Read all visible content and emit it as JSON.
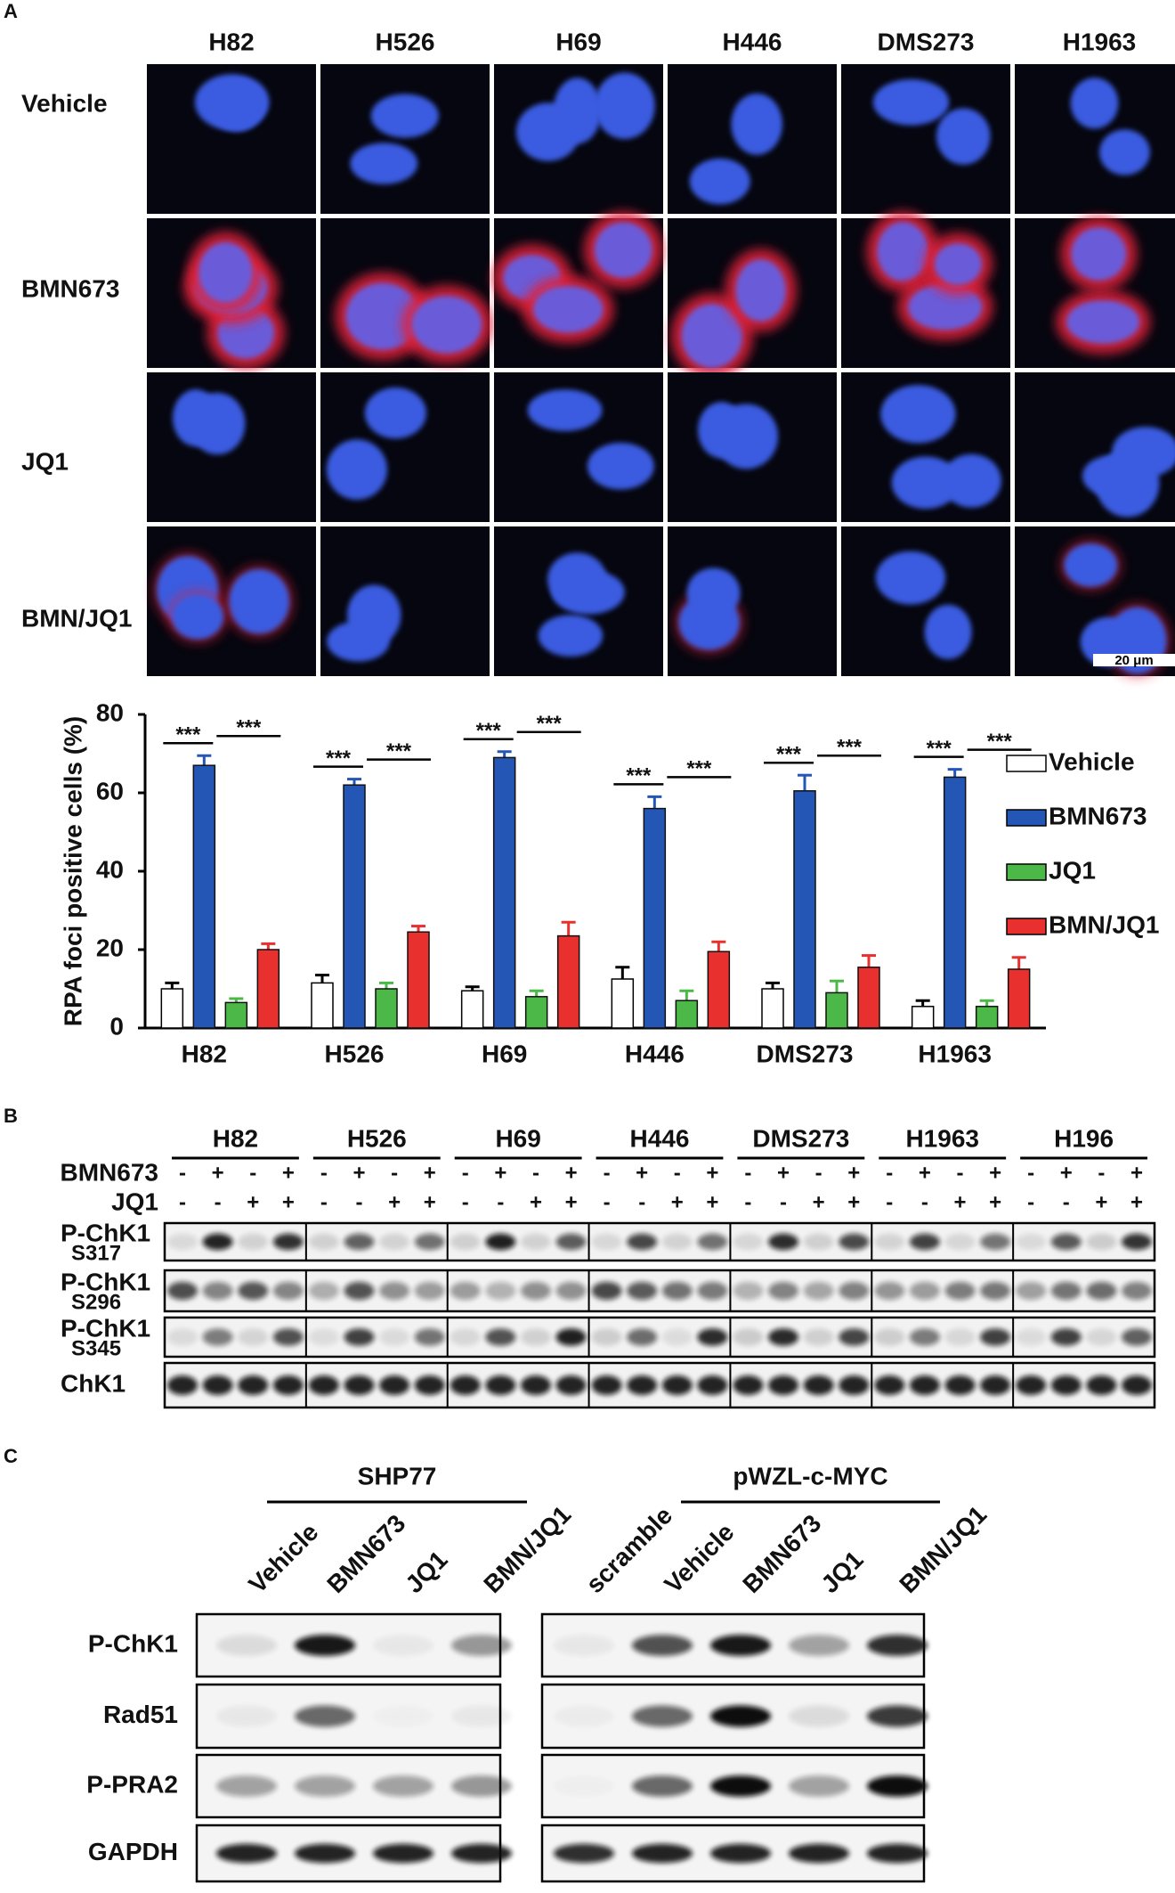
{
  "panel_a": {
    "label": "A",
    "cell_lines": [
      "H82",
      "H526",
      "H69",
      "H446",
      "DMS273",
      "H1963"
    ],
    "treatments": [
      "Vehicle",
      "BMN673",
      "JQ1",
      "BMN/JQ1"
    ],
    "scale_bar": "20 μm"
  },
  "chart_data": {
    "type": "bar",
    "ylabel": "RPA foci positive cells (%)",
    "categories": [
      "H82",
      "H526",
      "H69",
      "H446",
      "DMS273",
      "H1963"
    ],
    "series": [
      {
        "name": "Vehicle",
        "color": "#ffffff",
        "values": [
          10,
          11.5,
          9.5,
          12.5,
          10,
          5.5
        ],
        "errors": [
          1.5,
          2,
          1,
          3,
          1.5,
          1.5
        ]
      },
      {
        "name": "BMN673",
        "color": "#2456b5",
        "values": [
          67,
          62,
          69,
          56,
          60.5,
          64
        ],
        "errors": [
          2.5,
          1.5,
          1.5,
          3,
          4,
          2
        ]
      },
      {
        "name": "JQ1",
        "color": "#4cb848",
        "values": [
          6.5,
          10,
          8,
          7,
          9,
          5.5
        ],
        "errors": [
          1,
          1.5,
          1.5,
          2.5,
          3,
          1.5
        ]
      },
      {
        "name": "BMN/JQ1",
        "color": "#e8302e",
        "values": [
          20,
          24.5,
          23.5,
          19.5,
          15.5,
          15
        ],
        "errors": [
          1.5,
          1.5,
          3.5,
          2.5,
          3,
          3
        ]
      }
    ],
    "ylim": [
      0,
      80
    ],
    "yticks": [
      0,
      20,
      40,
      60,
      80
    ],
    "significance_label": "***"
  },
  "panel_b": {
    "label": "B",
    "cell_lines": [
      "H82",
      "H526",
      "H69",
      "H446",
      "DMS273",
      "H1963",
      "H196"
    ],
    "treatment_rows": [
      {
        "name": "BMN673",
        "signs": [
          "-",
          "+",
          "-",
          "+"
        ]
      },
      {
        "name": "JQ1",
        "signs": [
          "-",
          "-",
          "+",
          "+"
        ]
      }
    ],
    "blots": [
      {
        "name": "P-ChK1",
        "site": "S317"
      },
      {
        "name": "P-ChK1",
        "site": "S296"
      },
      {
        "name": "P-ChK1",
        "site": "S345"
      },
      {
        "name": "ChK1"
      }
    ]
  },
  "panel_c": {
    "label": "C",
    "groups": [
      {
        "name": "SHP77",
        "lanes": [
          "Vehicle",
          "BMN673",
          "JQ1",
          "BMN/JQ1"
        ]
      },
      {
        "name": "pWZL-c-MYC",
        "lanes": [
          "scramble",
          "Vehicle",
          "BMN673",
          "JQ1",
          "BMN/JQ1"
        ]
      }
    ],
    "blots": [
      "P-ChK1",
      "Rad51",
      "P-PRA2",
      "GAPDH"
    ]
  }
}
